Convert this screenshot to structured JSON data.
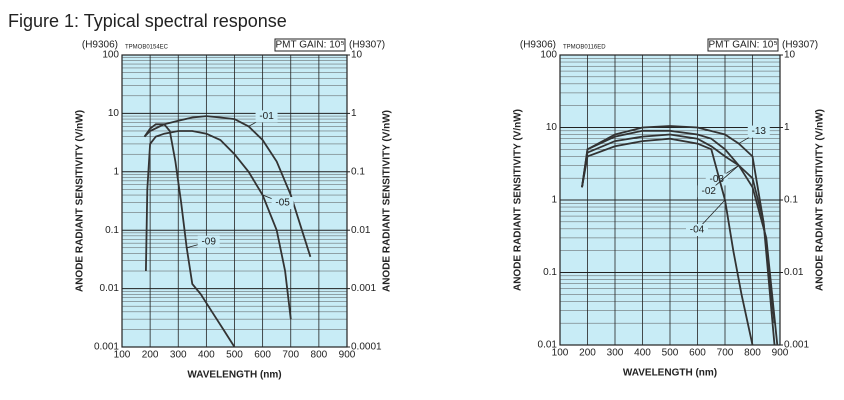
{
  "title": "Figure 1: Typical spectral response",
  "chart_data": [
    {
      "type": "line",
      "code": "TPMOB0154EC",
      "gain": "PMT GAIN: 10⁵",
      "y_axis_name": "(H9306)",
      "y2_axis_name": "(H9307)",
      "xlabel": "WAVELENGTH (nm)",
      "ylabel": "ANODE RADIANT SENSITIVITY (V/nW)",
      "y2label": "ANODE RADIANT SENSITIVITY (V/nW)",
      "xlim": [
        100,
        900
      ],
      "xticks": [
        100,
        200,
        300,
        400,
        500,
        600,
        700,
        800,
        900
      ],
      "ylim": [
        0.001,
        100
      ],
      "yticks": [
        100,
        10,
        1,
        0.1,
        0.01,
        0.001
      ],
      "y2lim": [
        0.0001,
        10
      ],
      "y2ticks": [
        10,
        1,
        0.1,
        0.01,
        0.001,
        0.0001
      ],
      "yscale": "log",
      "grid": true,
      "background": "#c8ecf6",
      "series": [
        {
          "name": "-01",
          "color": "#333333",
          "x": [
            180,
            200,
            250,
            300,
            350,
            400,
            450,
            500,
            550,
            600,
            650,
            700,
            750,
            770
          ],
          "values": [
            4,
            5,
            6.5,
            7.5,
            8.5,
            9,
            8.5,
            8,
            6,
            3.5,
            1.5,
            0.4,
            0.07,
            0.035
          ]
        },
        {
          "name": "-05",
          "color": "#333333",
          "x": [
            185,
            190,
            200,
            220,
            250,
            300,
            350,
            400,
            450,
            500,
            550,
            600,
            650,
            680,
            700
          ],
          "values": [
            0.02,
            0.5,
            3,
            4,
            4.5,
            5,
            5,
            4.5,
            3.5,
            2,
            1,
            0.4,
            0.1,
            0.02,
            0.003
          ]
        },
        {
          "name": "-09",
          "color": "#333333",
          "x": [
            180,
            200,
            220,
            250,
            270,
            290,
            310,
            330,
            350,
            380,
            420,
            460,
            500
          ],
          "values": [
            4,
            5.5,
            6.5,
            6.5,
            5,
            1.5,
            0.3,
            0.05,
            0.012,
            0.008,
            0.004,
            0.002,
            0.001
          ]
        }
      ]
    },
    {
      "type": "line",
      "code": "TPMOB0116ED",
      "gain": "PMT GAIN: 10⁵",
      "y_axis_name": "(H9306)",
      "y2_axis_name": "(H9307)",
      "xlabel": "WAVELENGTH (nm)",
      "ylabel": "ANODE RADIANT SENSITIVITY (V/nW)",
      "y2label": "ANODE RADIANT SENSITIVITY (V/nW)",
      "xlim": [
        100,
        900
      ],
      "xticks": [
        100,
        200,
        300,
        400,
        500,
        600,
        700,
        800,
        900
      ],
      "ylim": [
        0.01,
        100
      ],
      "yticks": [
        100,
        10,
        1,
        0.1,
        0.01
      ],
      "y2lim": [
        0.001,
        10
      ],
      "y2ticks": [
        10,
        1,
        0.1,
        0.01,
        0.001
      ],
      "yscale": "log",
      "grid": true,
      "background": "#c8ecf6",
      "series": [
        {
          "name": "-13",
          "color": "#333333",
          "x": [
            180,
            200,
            300,
            400,
            500,
            600,
            700,
            750,
            800,
            840,
            880
          ],
          "values": [
            1.5,
            5,
            8,
            10,
            10.5,
            10,
            8,
            6,
            4,
            0.5,
            0.01
          ]
        },
        {
          "name": "-03",
          "color": "#333333",
          "x": [
            180,
            200,
            300,
            400,
            500,
            600,
            650,
            700,
            750,
            800,
            850,
            890
          ],
          "values": [
            1.5,
            5,
            7.5,
            9,
            9,
            8,
            7,
            5,
            3,
            1.5,
            0.3,
            0.01
          ]
        },
        {
          "name": "-02",
          "color": "#333333",
          "x": [
            180,
            200,
            300,
            400,
            500,
            600,
            650,
            700,
            750,
            800,
            840,
            880
          ],
          "values": [
            1.5,
            4.5,
            6.5,
            7.5,
            8,
            7,
            5.5,
            4,
            3,
            2,
            0.5,
            0.02
          ]
        },
        {
          "name": "-04",
          "color": "#333333",
          "x": [
            180,
            200,
            300,
            400,
            500,
            600,
            650,
            700,
            730,
            760,
            800
          ],
          "values": [
            1.5,
            4,
            5.5,
            6.5,
            7,
            6,
            5,
            1,
            0.2,
            0.05,
            0.01
          ]
        }
      ]
    }
  ]
}
